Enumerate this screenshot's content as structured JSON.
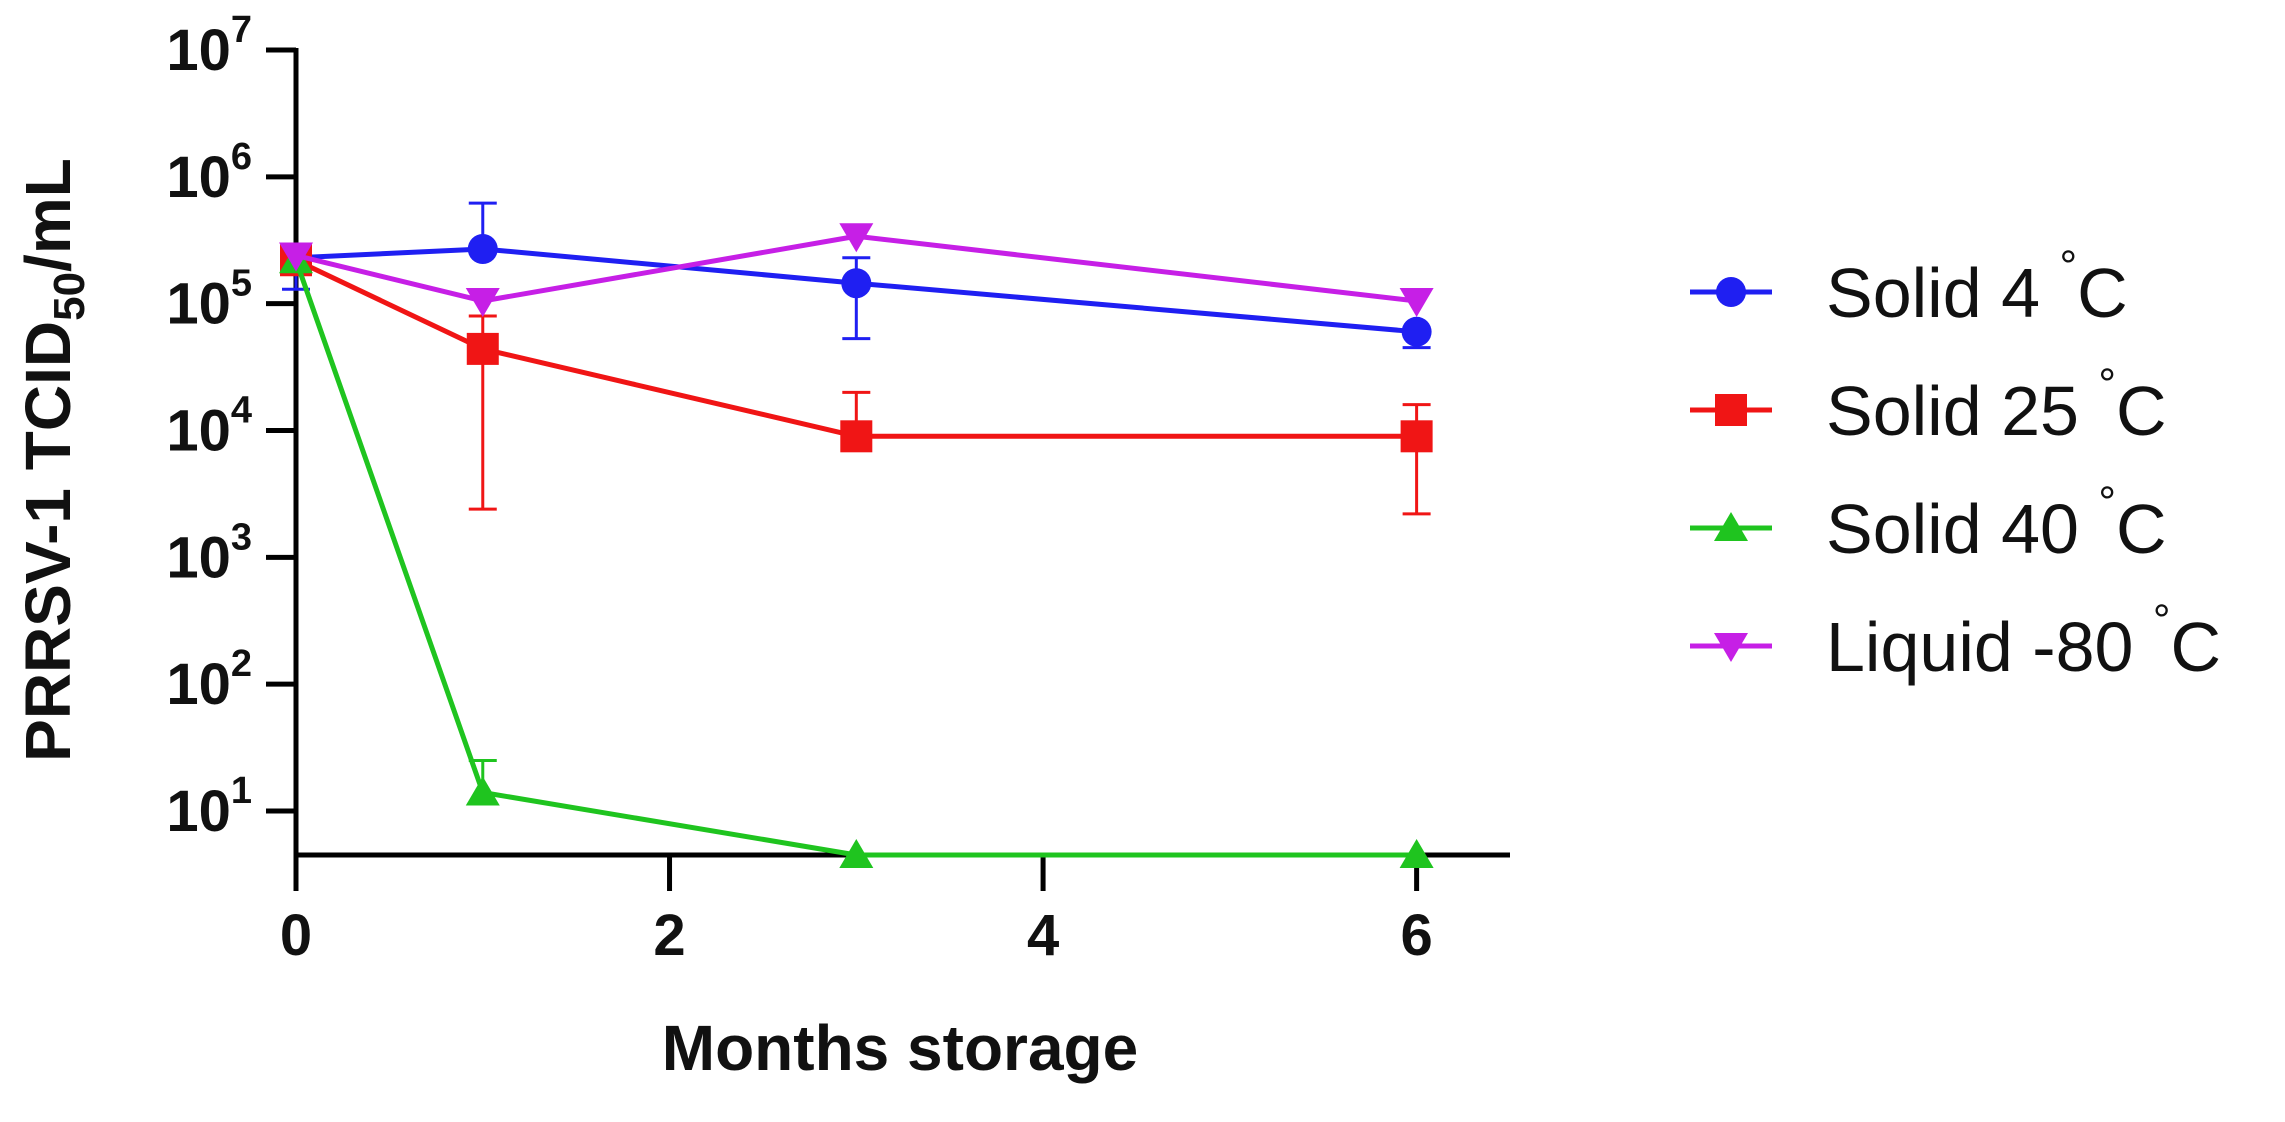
{
  "chart_data": {
    "type": "line",
    "xlabel": "Months storage",
    "ylabel": {
      "prefix": "PRRSV-1 TCID",
      "subscript": "50",
      "suffix": "/mL"
    },
    "xlim": [
      0,
      6.5
    ],
    "ylim": [
      4.5,
      10000000
    ],
    "y_scale": "log",
    "grid": false,
    "legend_position": "right",
    "x_ticks": [
      {
        "value": 0,
        "label": "0"
      },
      {
        "value": 2,
        "label": "2"
      },
      {
        "value": 4,
        "label": "4"
      },
      {
        "value": 6,
        "label": "6"
      }
    ],
    "y_ticks": [
      {
        "value": 10,
        "base": "10",
        "exp": "1"
      },
      {
        "value": 100,
        "base": "10",
        "exp": "2"
      },
      {
        "value": 1000,
        "base": "10",
        "exp": "3"
      },
      {
        "value": 10000,
        "base": "10",
        "exp": "4"
      },
      {
        "value": 100000,
        "base": "10",
        "exp": "5"
      },
      {
        "value": 1000000,
        "base": "10",
        "exp": "6"
      },
      {
        "value": 10000000,
        "base": "10",
        "exp": "7"
      }
    ],
    "series": [
      {
        "name": "Solid 4 °C",
        "legend": {
          "text": "Solid 4",
          "unit": "C"
        },
        "color": "#1f1ff2",
        "marker": "circle",
        "points": [
          {
            "x": 0,
            "y": 230000,
            "lo": 130000,
            "hi": 290000
          },
          {
            "x": 1,
            "y": 270000,
            "lo": 270000,
            "hi": 620000
          },
          {
            "x": 3,
            "y": 145000,
            "lo": 53000,
            "hi": 230000
          },
          {
            "x": 6,
            "y": 60000,
            "lo": 45000,
            "hi": 60000
          }
        ]
      },
      {
        "name": "Solid 25 °C",
        "legend": {
          "text": "Solid 25",
          "unit": "C"
        },
        "color": "#f01515",
        "marker": "square",
        "points": [
          {
            "x": 0,
            "y": 220000,
            "lo": 220000,
            "hi": 220000
          },
          {
            "x": 1,
            "y": 44000,
            "lo": 2400,
            "hi": 80000
          },
          {
            "x": 3,
            "y": 9000,
            "lo": 9000,
            "hi": 20000
          },
          {
            "x": 6,
            "y": 9000,
            "lo": 2200,
            "hi": 16000
          }
        ]
      },
      {
        "name": "Solid 40 °C",
        "legend": {
          "text": "Solid 40",
          "unit": "C"
        },
        "color": "#1fc41f",
        "marker": "triangle-up",
        "points": [
          {
            "x": 0,
            "y": 220000,
            "lo": 220000,
            "hi": 220000
          },
          {
            "x": 1,
            "y": 14,
            "lo": 14,
            "hi": 25
          },
          {
            "x": 3,
            "y": 4.5,
            "lo": 4.5,
            "hi": 4.5
          },
          {
            "x": 6,
            "y": 4.5,
            "lo": 4.5,
            "hi": 4.5
          }
        ]
      },
      {
        "name": "Liquid -80 °C",
        "legend": {
          "text": "Liquid -80",
          "unit": "C"
        },
        "color": "#c61fe6",
        "marker": "triangle-down",
        "points": [
          {
            "x": 0,
            "y": 240000,
            "lo": 240000,
            "hi": 240000
          },
          {
            "x": 1,
            "y": 105000,
            "lo": 105000,
            "hi": 105000
          },
          {
            "x": 3,
            "y": 340000,
            "lo": 340000,
            "hi": 340000
          },
          {
            "x": 6,
            "y": 105000,
            "lo": 105000,
            "hi": 105000
          }
        ]
      }
    ]
  }
}
